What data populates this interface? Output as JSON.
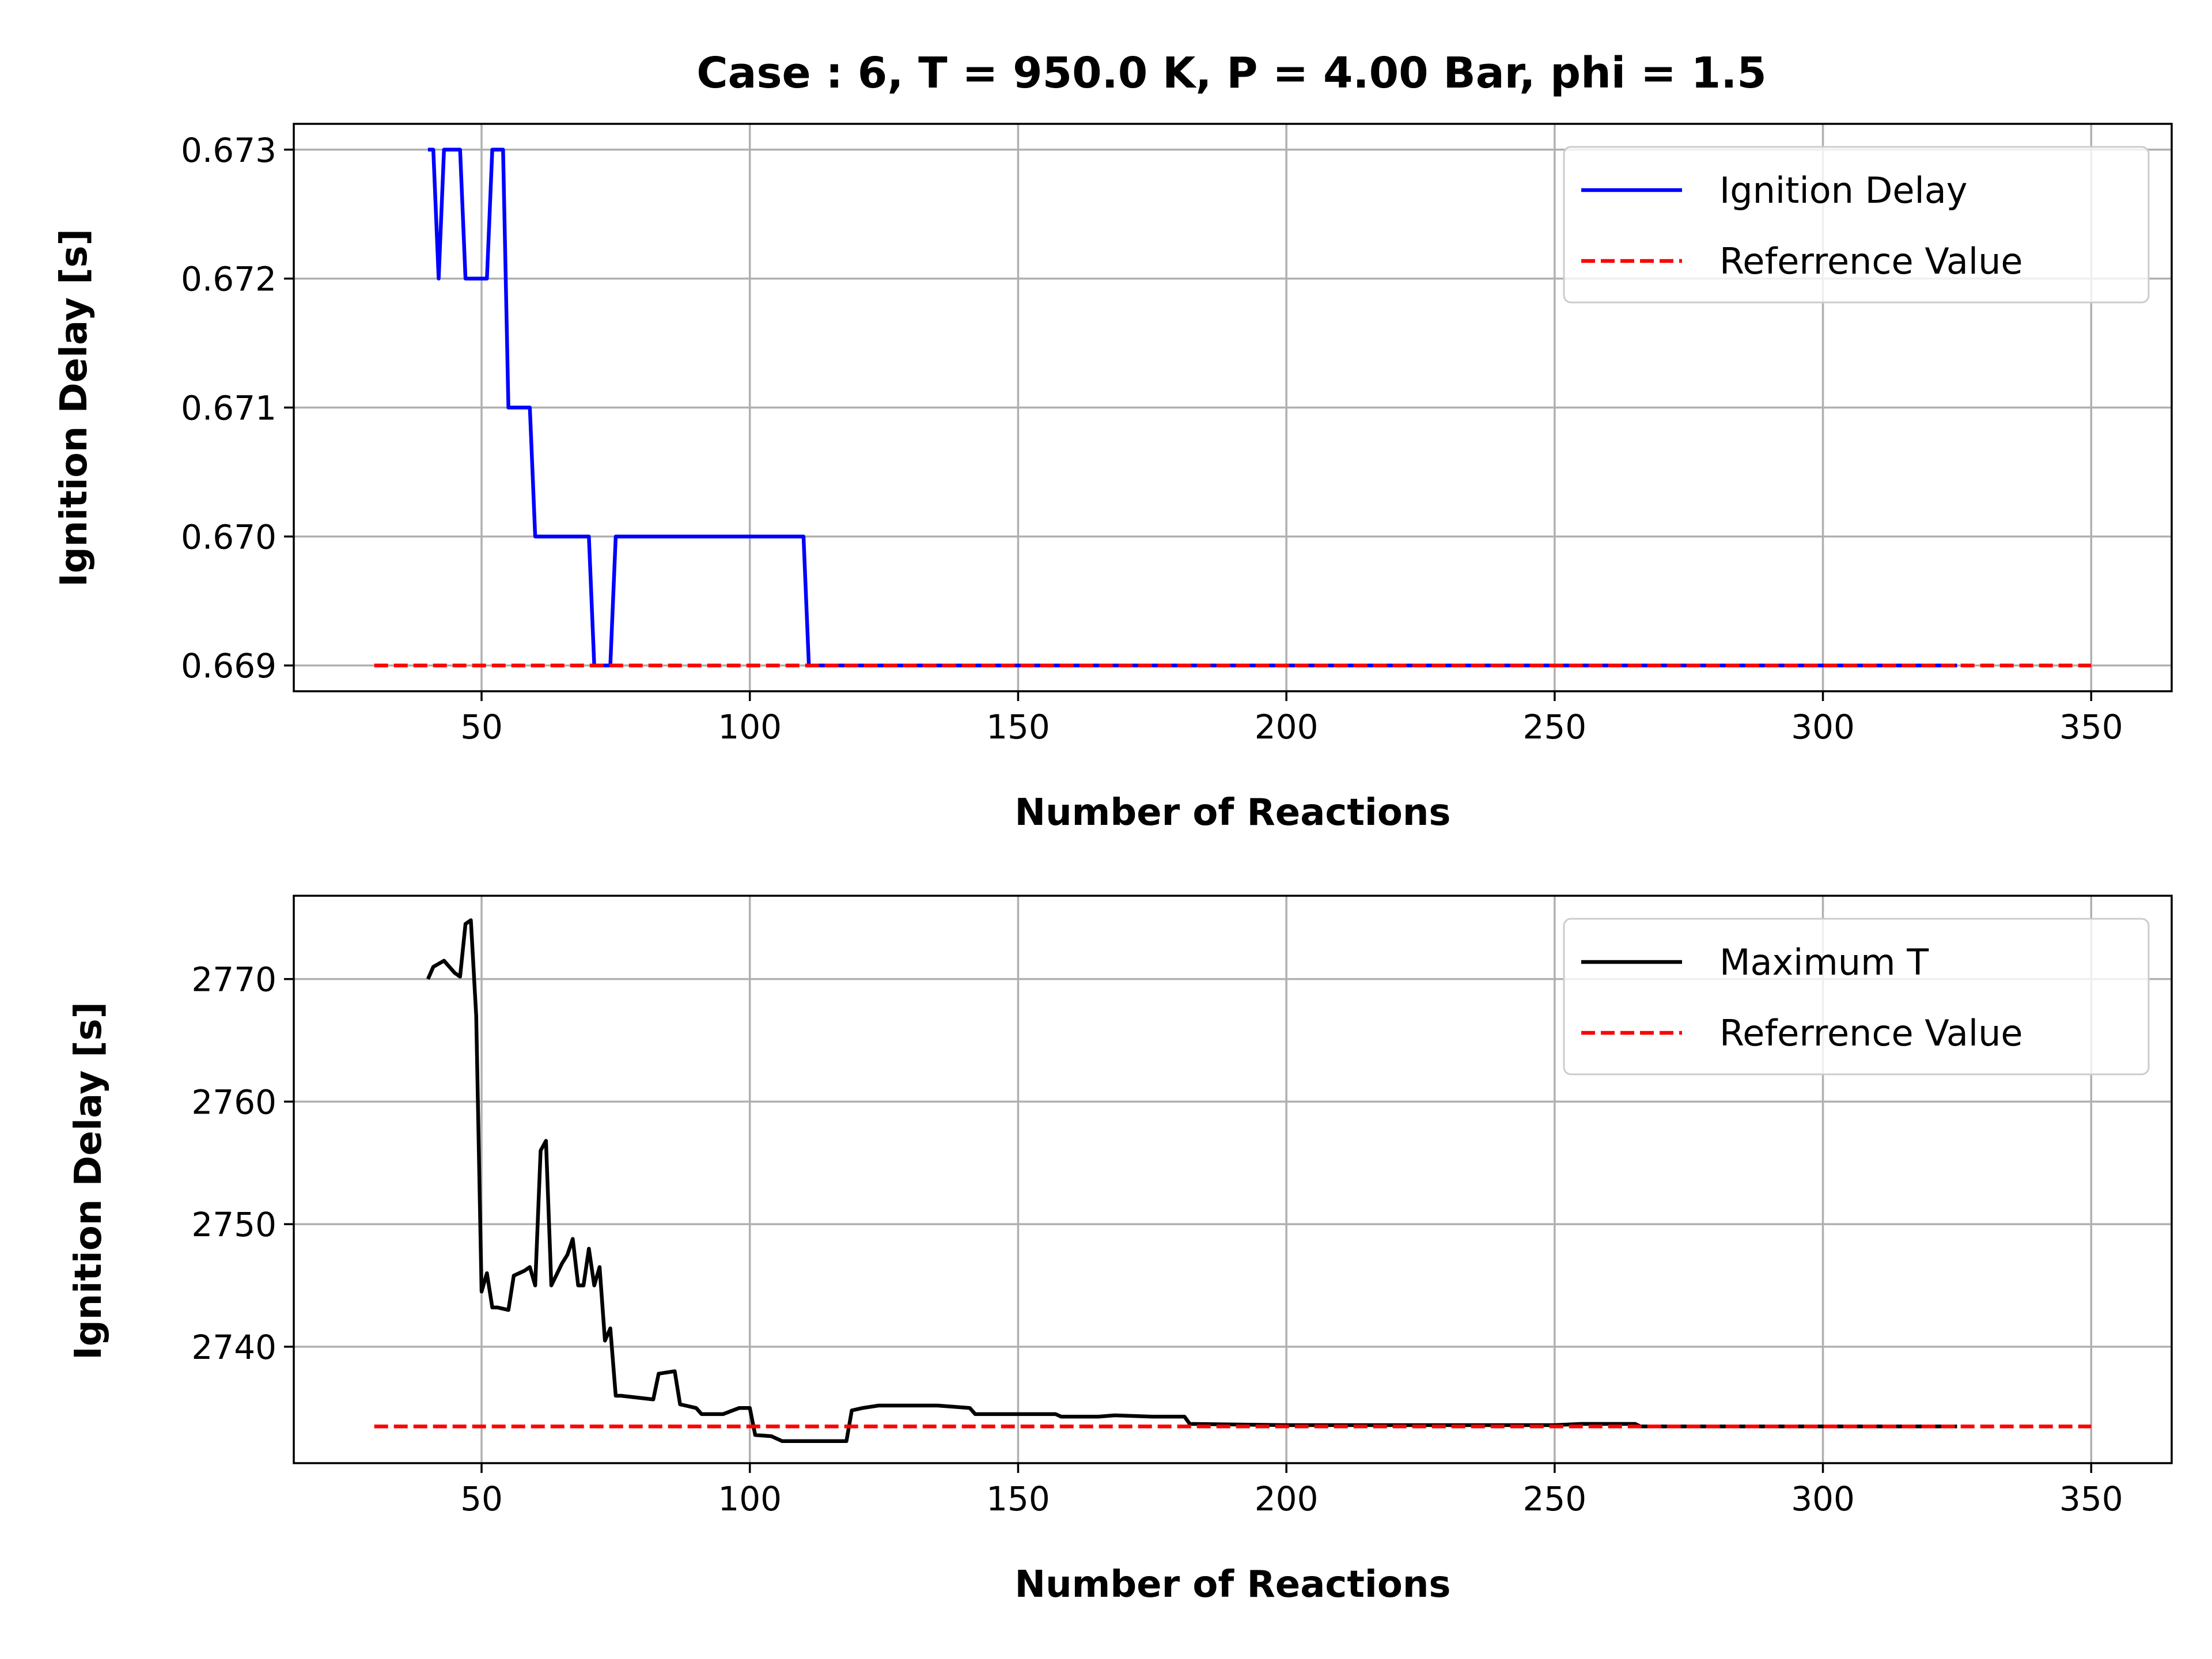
{
  "title": "Case : 6, T = 950.0 K, P = 4.00 Bar, phi = 1.5",
  "chart_data": [
    {
      "type": "line",
      "xlabel": "Number of Reactions",
      "ylabel": "Ignition Delay [s]",
      "xlim": [
        15,
        365
      ],
      "ylim": [
        0.6688,
        0.6732
      ],
      "xticks": [
        50,
        100,
        150,
        200,
        250,
        300,
        350
      ],
      "xtick_labels": [
        "50",
        "100",
        "150",
        "200",
        "250",
        "300",
        "350"
      ],
      "yticks": [
        0.669,
        0.67,
        0.671,
        0.672,
        0.673
      ],
      "ytick_labels": [
        "0.669",
        "0.670",
        "0.671",
        "0.672",
        "0.673"
      ],
      "grid": true,
      "legend_position": "top-right",
      "series": [
        {
          "name": "Ignition Delay",
          "color": "#0000ff",
          "style": "solid",
          "x": [
            40,
            41,
            42,
            43,
            45,
            46,
            47,
            49,
            50,
            51,
            52,
            54,
            55,
            56,
            59,
            60,
            70,
            71,
            74,
            75,
            110,
            111,
            325
          ],
          "y": [
            0.673,
            0.673,
            0.672,
            0.673,
            0.673,
            0.673,
            0.672,
            0.672,
            0.672,
            0.672,
            0.673,
            0.673,
            0.671,
            0.671,
            0.671,
            0.67,
            0.67,
            0.669,
            0.669,
            0.67,
            0.67,
            0.669,
            0.669
          ]
        },
        {
          "name": "Referrence Value",
          "color": "#ff0000",
          "style": "dashed",
          "x": [
            30,
            350
          ],
          "y": [
            0.669,
            0.669
          ]
        }
      ]
    },
    {
      "type": "line",
      "xlabel": "Number of Reactions",
      "ylabel": "Ignition Delay [s]",
      "xlim": [
        15,
        365
      ],
      "ylim": [
        2730.5,
        2776.8
      ],
      "xticks": [
        50,
        100,
        150,
        200,
        250,
        300,
        350
      ],
      "xtick_labels": [
        "50",
        "100",
        "150",
        "200",
        "250",
        "300",
        "350"
      ],
      "yticks": [
        2740,
        2750,
        2760,
        2770
      ],
      "ytick_labels": [
        "2740",
        "2750",
        "2760",
        "2770"
      ],
      "grid": true,
      "legend_position": "top-right",
      "series": [
        {
          "name": "Maximum T",
          "color": "#000000",
          "style": "solid",
          "x": [
            40,
            41,
            43,
            45,
            46,
            47,
            48,
            49,
            50,
            51,
            52,
            53,
            55,
            56,
            58,
            59,
            60,
            61,
            62,
            63,
            65,
            66,
            67,
            68,
            69,
            70,
            71,
            72,
            73,
            74,
            75,
            76,
            78,
            82,
            83,
            86,
            87,
            88,
            90,
            91,
            95,
            98,
            100,
            101,
            104,
            106,
            110,
            118,
            119,
            121,
            124,
            130,
            135,
            138,
            141,
            142,
            150,
            157,
            158,
            165,
            168,
            175,
            181,
            182,
            200,
            250,
            255,
            265,
            266,
            270,
            300,
            325
          ],
          "y": [
            2770,
            2771,
            2771.5,
            2770.5,
            2770.2,
            2774.5,
            2774.8,
            2767,
            2744.5,
            2746,
            2743.2,
            2743.2,
            2743,
            2745.8,
            2746.2,
            2746.5,
            2745,
            2756,
            2756.8,
            2745,
            2746.8,
            2747.5,
            2748.8,
            2745,
            2745,
            2748,
            2745,
            2746.5,
            2740.5,
            2741.5,
            2736,
            2736,
            2735.9,
            2735.7,
            2737.8,
            2738,
            2735.3,
            2735.2,
            2735,
            2734.5,
            2734.5,
            2735,
            2735,
            2732.8,
            2732.7,
            2732.3,
            2732.3,
            2732.3,
            2734.8,
            2735,
            2735.2,
            2735.2,
            2735.2,
            2735.1,
            2735,
            2734.5,
            2734.5,
            2734.5,
            2734.3,
            2734.3,
            2734.4,
            2734.3,
            2734.3,
            2733.7,
            2733.6,
            2733.6,
            2733.7,
            2733.7,
            2733.5,
            2733.5,
            2733.5,
            2733.5
          ]
        },
        {
          "name": "Referrence Value",
          "color": "#ff0000",
          "style": "dashed",
          "x": [
            30,
            350
          ],
          "y": [
            2733.5,
            2733.5
          ]
        }
      ]
    }
  ]
}
